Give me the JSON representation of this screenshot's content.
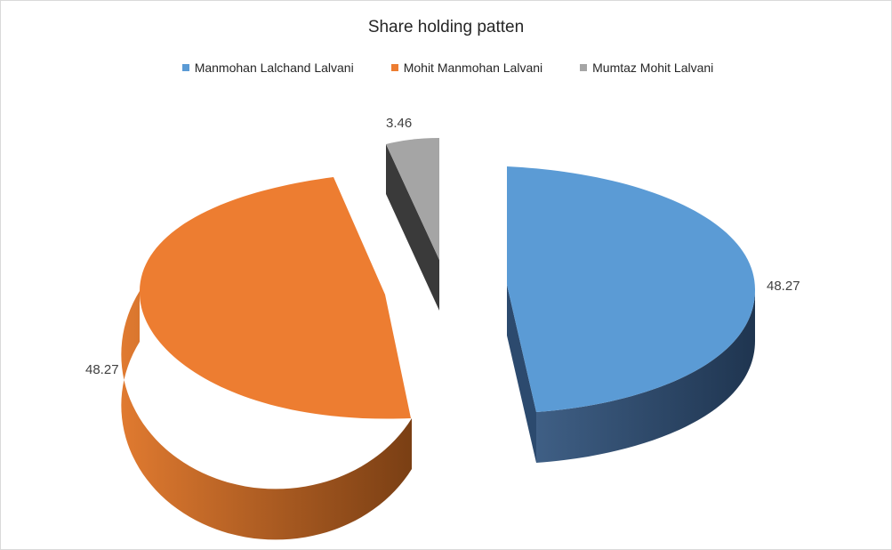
{
  "chart_data": {
    "type": "pie",
    "title": "Share holding patten",
    "legend_position": "top",
    "slices": [
      {
        "label": "Manmohan Lalchand Lalvani",
        "value": 48.27,
        "value_label": "48.27",
        "color": "#5B9BD5"
      },
      {
        "label": "Mohit Manmohan Lalvani",
        "value": 48.27,
        "value_label": "48.27",
        "color": "#ED7D31"
      },
      {
        "label": "Mumtaz Mohit Lalvani",
        "value": 3.46,
        "value_label": "3.46",
        "color": "#A5A5A5"
      }
    ],
    "style": "3d-exploded"
  }
}
